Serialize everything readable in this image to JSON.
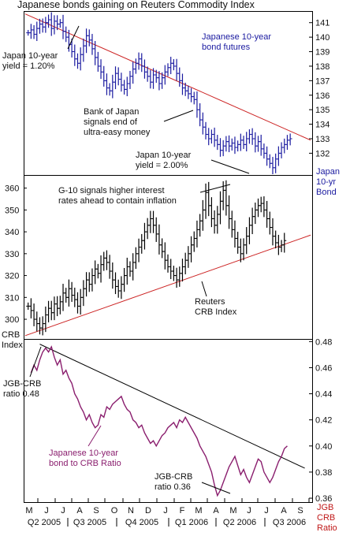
{
  "chart_data": [
    {
      "type": "ohlc",
      "title": "Japanese bonds gaining on Reuters Commodity Index",
      "series_name": "Japanese 10-year bond futures",
      "axis_label": [
        "Japan",
        "10-yr",
        "Bond"
      ],
      "ylim": [
        130.5,
        141.8
      ],
      "yticks": [
        132,
        133,
        134,
        135,
        136,
        137,
        138,
        139,
        140,
        141
      ],
      "color": "#1a1aa0",
      "trendline": {
        "x": [
          0,
          98
        ],
        "y": [
          141.6,
          132.9
        ],
        "color": "#cc2222"
      },
      "values": [
        140.3,
        140.5,
        140.2,
        140.6,
        140.9,
        140.7,
        141.0,
        141.2,
        140.6,
        141.1,
        140.9,
        141.0,
        140.4,
        140.0,
        139.5,
        139.0,
        138.5,
        138.2,
        138.8,
        139.4,
        140.1,
        139.8,
        139.2,
        138.6,
        138.0,
        137.6,
        137.0,
        136.5,
        136.3,
        136.9,
        137.5,
        137.1,
        136.7,
        136.4,
        136.8,
        137.3,
        137.8,
        138.2,
        138.5,
        138.0,
        137.6,
        137.3,
        136.9,
        137.4,
        137.2,
        136.8,
        137.2,
        137.6,
        137.9,
        138.2,
        138.0,
        137.5,
        137.0,
        136.5,
        136.3,
        136.1,
        135.9,
        135.7,
        135.0,
        134.3,
        133.8,
        133.3,
        133.0,
        133.3,
        132.9,
        132.6,
        132.2,
        132.5,
        132.8,
        132.5,
        132.7,
        132.4,
        132.6,
        132.9,
        132.6,
        133.0,
        133.3,
        133.0,
        132.5,
        132.8,
        132.3,
        132.0,
        131.6,
        131.3,
        131.0,
        131.6,
        132.0,
        132.4,
        132.6,
        132.9,
        133.0
      ],
      "annotations": [
        {
          "text": [
            "Japanese 10-year",
            "bond futures"
          ],
          "color": "blue"
        },
        {
          "text": [
            "Japan 10-year",
            "yield = 1.20%"
          ],
          "color": "black"
        },
        {
          "text": [
            "Bank of Japan",
            "signals end of",
            "ultra-easy money"
          ],
          "color": "black"
        },
        {
          "text": [
            "Japan 10-year",
            "yield = 2.00%"
          ],
          "color": "black"
        }
      ]
    },
    {
      "type": "ohlc",
      "series_name": "Reuters CRB Index",
      "axis_label": [
        "CRB",
        "Index"
      ],
      "ylim": [
        291,
        366
      ],
      "yticks": [
        300,
        310,
        320,
        330,
        340,
        350,
        360
      ],
      "color": "#000000",
      "trendline": {
        "x": [
          0,
          98
        ],
        "y": [
          292.5,
          338.5
        ],
        "color": "#cc2222"
      },
      "values": [
        306,
        304,
        300,
        298,
        296,
        298,
        302,
        305,
        303,
        307,
        305,
        308,
        312,
        310,
        314,
        311,
        309,
        306,
        310,
        314,
        318,
        316,
        320,
        323,
        321,
        325,
        328,
        326,
        322,
        318,
        315,
        313,
        316,
        320,
        324,
        322,
        326,
        330,
        333,
        336,
        340,
        343,
        346,
        343,
        339,
        334,
        331,
        327,
        324,
        322,
        320,
        318,
        321,
        324,
        327,
        330,
        334,
        337,
        341,
        345,
        350,
        358,
        352,
        346,
        343,
        348,
        354,
        359,
        352,
        346,
        341,
        337,
        333,
        330,
        334,
        338,
        343,
        347,
        350,
        352,
        353,
        350,
        346,
        342,
        338,
        335,
        333,
        334,
        336
      ],
      "annotations": [
        {
          "text": [
            "G-10 signals higher interest",
            "rates ahead to contain inflation"
          ],
          "color": "black"
        },
        {
          "text": [
            "Reuters",
            "CRB Index"
          ],
          "color": "black"
        }
      ]
    },
    {
      "type": "line",
      "series_name": "JGB-CRB Ratio",
      "axis_label": [
        "JGB",
        "CRB",
        "Ratio"
      ],
      "ylim": [
        0.357,
        0.482
      ],
      "yticks": [
        0.36,
        0.38,
        0.4,
        0.42,
        0.44,
        0.46,
        0.48
      ],
      "color": "#8a1e6e",
      "trendline": {
        "x": [
          5,
          96
        ],
        "y": [
          0.478,
          0.383
        ],
        "color": "#000000"
      },
      "values": [
        0.456,
        0.462,
        0.458,
        0.466,
        0.472,
        0.475,
        0.472,
        0.476,
        0.468,
        0.462,
        0.466,
        0.455,
        0.458,
        0.452,
        0.448,
        0.44,
        0.436,
        0.43,
        0.426,
        0.42,
        0.424,
        0.418,
        0.414,
        0.416,
        0.424,
        0.422,
        0.43,
        0.428,
        0.432,
        0.434,
        0.436,
        0.438,
        0.432,
        0.428,
        0.426,
        0.42,
        0.418,
        0.414,
        0.416,
        0.41,
        0.406,
        0.402,
        0.404,
        0.4,
        0.404,
        0.408,
        0.41,
        0.414,
        0.416,
        0.418,
        0.414,
        0.42,
        0.418,
        0.422,
        0.418,
        0.414,
        0.41,
        0.406,
        0.4,
        0.396,
        0.392,
        0.386,
        0.38,
        0.37,
        0.362,
        0.366,
        0.372,
        0.378,
        0.384,
        0.388,
        0.392,
        0.385,
        0.378,
        0.382,
        0.376,
        0.372,
        0.378,
        0.384,
        0.39,
        0.388,
        0.38,
        0.376,
        0.372,
        0.376,
        0.382,
        0.388,
        0.392,
        0.398,
        0.4
      ],
      "annotations": [
        {
          "text": [
            "JGB-CRB",
            "ratio 0.48"
          ],
          "color": "black"
        },
        {
          "text": [
            "Japanese 10-year",
            "bond to CRB Ratio"
          ],
          "color": "purple"
        },
        {
          "text": [
            "JGB-CRB",
            "ratio 0.36"
          ],
          "color": "black"
        }
      ]
    }
  ],
  "xaxis": {
    "months": [
      "M",
      "J",
      "J",
      "A",
      "S",
      "O",
      "N",
      "D",
      "J",
      "F",
      "M",
      "A",
      "M",
      "J",
      "J",
      "A",
      "S"
    ],
    "quarters": [
      "Q2 2005",
      "Q3 2005",
      "Q4 2005",
      "Q1 2006",
      "Q2 2006",
      "Q3 2006"
    ]
  }
}
